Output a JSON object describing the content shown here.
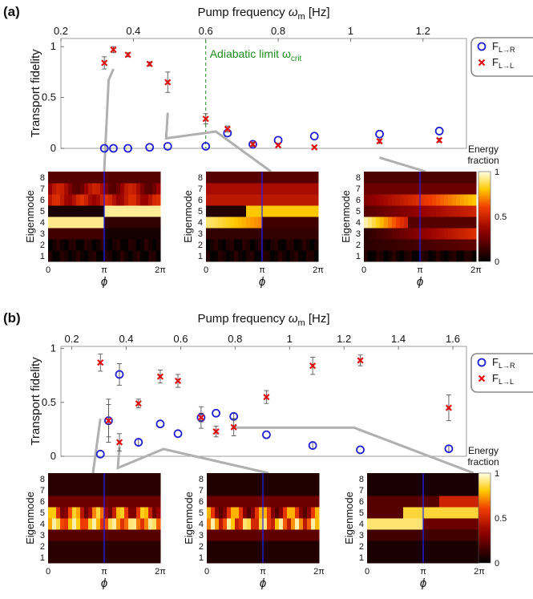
{
  "chart_data": [
    {
      "panel_label": "(a)",
      "type": "scatter",
      "xlabel": "Pump frequency",
      "xlabel_symbol": "ω",
      "xlabel_sub": "m",
      "xlabel_unit": "[Hz]",
      "ylabel": "Transport fidelity",
      "xlim": [
        0.2,
        1.32
      ],
      "ylim": [
        0,
        1.08
      ],
      "xticks": [
        {
          "v": 0.2,
          "label": "0.2"
        },
        {
          "v": 0.4,
          "label": "0.4"
        },
        {
          "v": 0.6,
          "label": "0.6"
        },
        {
          "v": 0.8,
          "label": "0.8"
        },
        {
          "v": 1.0,
          "label": "1"
        },
        {
          "v": 1.2,
          "label": "1.2"
        }
      ],
      "yticks": [
        {
          "v": 0,
          "label": "0"
        },
        {
          "v": 0.5,
          "label": "0.5"
        },
        {
          "v": 1,
          "label": "1"
        }
      ],
      "annotation": {
        "text": "Adiabatic limit ω",
        "sub": "crit",
        "x": 0.6
      },
      "series": [
        {
          "name": "F_L→R",
          "label_main": "F",
          "label_sub": "L→R",
          "marker": "circle",
          "color": "#1f1fd1",
          "points": [
            {
              "x": 0.32,
              "y": 0.0
            },
            {
              "x": 0.345,
              "y": 0.0
            },
            {
              "x": 0.385,
              "y": 0.0
            },
            {
              "x": 0.445,
              "y": 0.01
            },
            {
              "x": 0.495,
              "y": 0.02
            },
            {
              "x": 0.6,
              "y": 0.02
            },
            {
              "x": 0.66,
              "y": 0.15
            },
            {
              "x": 0.73,
              "y": 0.04
            },
            {
              "x": 0.8,
              "y": 0.08
            },
            {
              "x": 0.9,
              "y": 0.12
            },
            {
              "x": 1.08,
              "y": 0.14
            },
            {
              "x": 1.245,
              "y": 0.17
            }
          ]
        },
        {
          "name": "F_L→L",
          "label_main": "F",
          "label_sub": "L→L",
          "marker": "x",
          "color": "#e01010",
          "points": [
            {
              "x": 0.32,
              "y": 0.84,
              "err": 0.06
            },
            {
              "x": 0.345,
              "y": 0.97,
              "err": 0.03
            },
            {
              "x": 0.385,
              "y": 0.92,
              "err": 0.02
            },
            {
              "x": 0.445,
              "y": 0.83,
              "err": 0.02
            },
            {
              "x": 0.495,
              "y": 0.65,
              "err": 0.1
            },
            {
              "x": 0.6,
              "y": 0.29,
              "err": 0.05
            },
            {
              "x": 0.66,
              "y": 0.19,
              "err": 0.03
            },
            {
              "x": 0.73,
              "y": 0.04,
              "err": 0.02
            },
            {
              "x": 0.8,
              "y": 0.03,
              "err": 0.01
            },
            {
              "x": 0.9,
              "y": 0.01,
              "err": 0.01
            },
            {
              "x": 1.08,
              "y": 0.07,
              "err": 0.02
            },
            {
              "x": 1.245,
              "y": 0.08,
              "err": 0.02
            }
          ]
        }
      ],
      "heatmaps": [
        {
          "linked_x": 0.345,
          "linked_y": 0.97
        },
        {
          "linked_x": 0.495,
          "linked_y": 0.65
        },
        {
          "linked_x": 1.08,
          "linked_y": 0.13
        }
      ],
      "heatmap_axes": {
        "ylabel": "Eigenmode",
        "xlabel": "ϕ",
        "yticks": [
          "1",
          "2",
          "3",
          "4",
          "5",
          "6",
          "7",
          "8"
        ],
        "xticks": [
          "0",
          "π",
          "2π"
        ]
      },
      "colorbar": {
        "title_line1": "Energy",
        "title_line2": "fraction",
        "ticks": [
          "0",
          "0.5",
          "1"
        ]
      }
    },
    {
      "panel_label": "(b)",
      "type": "scatter",
      "xlabel": "Pump frequency",
      "xlabel_symbol": "ω",
      "xlabel_sub": "m",
      "xlabel_unit": "[Hz]",
      "ylabel": "Transport fidelity",
      "xlim": [
        0.16,
        1.65
      ],
      "ylim": [
        0,
        1.02
      ],
      "xticks": [
        {
          "v": 0.2,
          "label": "0.2"
        },
        {
          "v": 0.4,
          "label": "0.4"
        },
        {
          "v": 0.6,
          "label": "0.6"
        },
        {
          "v": 0.8,
          "label": "0.8"
        },
        {
          "v": 1.0,
          "label": "1"
        },
        {
          "v": 1.2,
          "label": "1.2"
        },
        {
          "v": 1.4,
          "label": "1.4"
        },
        {
          "v": 1.6,
          "label": "1.6"
        }
      ],
      "yticks": [
        {
          "v": 0,
          "label": "0"
        },
        {
          "v": 0.5,
          "label": "0.5"
        },
        {
          "v": 1,
          "label": "1"
        }
      ],
      "series": [
        {
          "name": "F_L→R",
          "label_main": "F",
          "label_sub": "L→R",
          "marker": "circle",
          "color": "#1f1fd1",
          "points": [
            {
              "x": 0.305,
              "y": 0.02
            },
            {
              "x": 0.335,
              "y": 0.33,
              "err": 0.2
            },
            {
              "x": 0.375,
              "y": 0.76,
              "err": 0.1
            },
            {
              "x": 0.445,
              "y": 0.13,
              "err": 0.03
            },
            {
              "x": 0.525,
              "y": 0.3
            },
            {
              "x": 0.59,
              "y": 0.21
            },
            {
              "x": 0.675,
              "y": 0.36,
              "err": 0.04
            },
            {
              "x": 0.73,
              "y": 0.4
            },
            {
              "x": 0.795,
              "y": 0.37,
              "err": 0.03
            },
            {
              "x": 0.915,
              "y": 0.2
            },
            {
              "x": 1.085,
              "y": 0.1,
              "err": 0.03
            },
            {
              "x": 1.26,
              "y": 0.06
            },
            {
              "x": 1.585,
              "y": 0.07,
              "err": 0.03
            }
          ]
        },
        {
          "name": "F_L→L",
          "label_main": "F",
          "label_sub": "L→L",
          "marker": "x",
          "color": "#e01010",
          "points": [
            {
              "x": 0.305,
              "y": 0.87,
              "err": 0.08
            },
            {
              "x": 0.335,
              "y": 0.33,
              "err": 0.15
            },
            {
              "x": 0.375,
              "y": 0.13,
              "err": 0.08
            },
            {
              "x": 0.445,
              "y": 0.49,
              "err": 0.04
            },
            {
              "x": 0.525,
              "y": 0.74,
              "err": 0.06
            },
            {
              "x": 0.59,
              "y": 0.7,
              "err": 0.06
            },
            {
              "x": 0.675,
              "y": 0.36,
              "err": 0.1
            },
            {
              "x": 0.73,
              "y": 0.23,
              "err": 0.05
            },
            {
              "x": 0.795,
              "y": 0.27,
              "err": 0.08
            },
            {
              "x": 0.915,
              "y": 0.55,
              "err": 0.06
            },
            {
              "x": 1.085,
              "y": 0.84,
              "err": 0.08
            },
            {
              "x": 1.26,
              "y": 0.89,
              "err": 0.05
            },
            {
              "x": 1.585,
              "y": 0.45,
              "err": 0.12
            }
          ]
        }
      ],
      "heatmaps": [
        {
          "linked_x": 0.305,
          "linked_y": 0.87
        },
        {
          "linked_x": 0.375,
          "linked_y": 0.13
        },
        {
          "linked_x": 0.795,
          "linked_y": 0.37
        }
      ],
      "heatmap_axes": {
        "ylabel": "Eigenmode",
        "xlabel": "ϕ",
        "yticks": [
          "1",
          "2",
          "3",
          "4",
          "5",
          "6",
          "7",
          "8"
        ],
        "xticks": [
          "0",
          "π",
          "2π"
        ]
      },
      "colorbar": {
        "title_line1": "Energy",
        "title_line2": "fraction",
        "ticks": [
          "0",
          "0.5",
          "1"
        ]
      }
    }
  ],
  "colors": {
    "circle_series": "#1f1fd1",
    "x_series": "#e01010",
    "annotation": "#1e8c1e",
    "connector": "#b0b0b0",
    "errorbar": "#555555",
    "heatmap_marker_line": "#2020ff"
  }
}
